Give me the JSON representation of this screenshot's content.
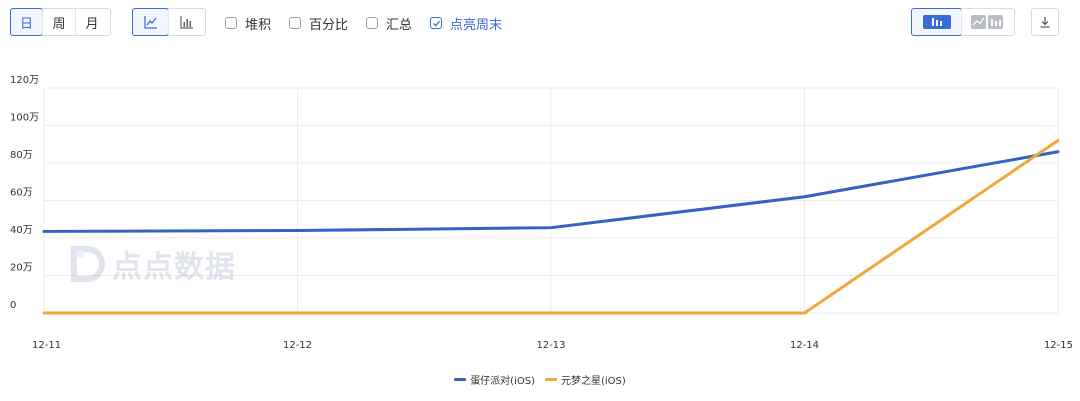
{
  "toolbar": {
    "period_tabs": [
      {
        "label": "日",
        "active": true
      },
      {
        "label": "周",
        "active": false
      },
      {
        "label": "月",
        "active": false
      }
    ],
    "chart_type_tabs": [
      {
        "icon": "line-chart-icon",
        "active": true
      },
      {
        "icon": "bar-chart-icon",
        "active": false
      }
    ],
    "options": [
      {
        "label": "堆积",
        "checked": false
      },
      {
        "label": "百分比",
        "checked": false
      },
      {
        "label": "汇总",
        "checked": false
      },
      {
        "label": "点亮周末",
        "checked": true
      }
    ],
    "view_tabs": [
      {
        "icon": "single-chart-view-icon",
        "active": true
      },
      {
        "icon": "split-chart-view-icon",
        "active": false
      }
    ],
    "download_icon": "download-icon"
  },
  "watermark": {
    "text": "点点数据",
    "icon": "diandian-logo-icon"
  },
  "colors": {
    "accent": "#3a6ad6",
    "series1": "#3463c4",
    "series2": "#f0a63b"
  },
  "chart_data": {
    "type": "line",
    "x": [
      "12-11",
      "12-12",
      "12-13",
      "12-14",
      "12-15"
    ],
    "yticks": [
      "0",
      "20万",
      "40万",
      "60万",
      "80万",
      "100万",
      "120万"
    ],
    "ylim": [
      0,
      1200000
    ],
    "grid": true,
    "legend_position": "bottom",
    "series": [
      {
        "name": "蛋仔派对(iOS)",
        "color": "#3463c4",
        "values": [
          435000,
          440000,
          455000,
          620000,
          860000
        ]
      },
      {
        "name": "元梦之星(iOS)",
        "color": "#f0a63b",
        "values": [
          0,
          0,
          0,
          0,
          920000
        ]
      }
    ]
  }
}
